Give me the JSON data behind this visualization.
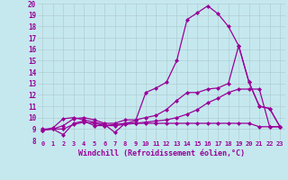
{
  "xlabel": "Windchill (Refroidissement éolien,°C)",
  "xlim": [
    -0.5,
    23.5
  ],
  "ylim": [
    8,
    20
  ],
  "xticks": [
    0,
    1,
    2,
    3,
    4,
    5,
    6,
    7,
    8,
    9,
    10,
    11,
    12,
    13,
    14,
    15,
    16,
    17,
    18,
    19,
    20,
    21,
    22,
    23
  ],
  "yticks": [
    8,
    9,
    10,
    11,
    12,
    13,
    14,
    15,
    16,
    17,
    18,
    19,
    20
  ],
  "bg_color": "#c5e8ee",
  "grid_color": "#b0cdd4",
  "line_color": "#990099",
  "line1_x": [
    0,
    1,
    2,
    3,
    4,
    5,
    6,
    7,
    8,
    9,
    10,
    11,
    12,
    13,
    14,
    15,
    16,
    17,
    18,
    19,
    20,
    21,
    22,
    23
  ],
  "line1_y": [
    8.9,
    9.1,
    9.9,
    10.0,
    9.8,
    9.6,
    9.4,
    8.7,
    9.5,
    9.7,
    12.2,
    12.6,
    13.1,
    15.0,
    18.6,
    19.2,
    19.8,
    19.1,
    18.0,
    16.3,
    13.1,
    11.0,
    10.8,
    9.2
  ],
  "line2_x": [
    0,
    1,
    2,
    3,
    4,
    5,
    6,
    7,
    8,
    9,
    10,
    11,
    12,
    13,
    14,
    15,
    16,
    17,
    18,
    19,
    20,
    21,
    22,
    23
  ],
  "line2_y": [
    9.0,
    9.0,
    9.0,
    9.4,
    9.6,
    9.5,
    9.3,
    9.4,
    9.5,
    9.5,
    9.6,
    9.7,
    9.8,
    10.0,
    10.3,
    10.7,
    11.3,
    11.7,
    12.2,
    12.5,
    12.5,
    12.5,
    9.2,
    9.2
  ],
  "line3_x": [
    0,
    1,
    2,
    3,
    4,
    5,
    6,
    7,
    8,
    9,
    10,
    11,
    12,
    13,
    14,
    15,
    16,
    17,
    18,
    19,
    20,
    21,
    22,
    23
  ],
  "line3_y": [
    8.9,
    9.0,
    9.3,
    9.9,
    10.0,
    9.8,
    9.5,
    9.5,
    9.8,
    9.8,
    10.0,
    10.2,
    10.7,
    11.5,
    12.2,
    12.2,
    12.5,
    12.6,
    13.0,
    16.3,
    13.1,
    11.0,
    10.8,
    9.2
  ],
  "line4_x": [
    0,
    1,
    2,
    3,
    4,
    5,
    6,
    7,
    8,
    9,
    10,
    11,
    12,
    13,
    14,
    15,
    16,
    17,
    18,
    19,
    20,
    21,
    22,
    23
  ],
  "line4_y": [
    8.9,
    9.0,
    8.5,
    9.5,
    9.7,
    9.3,
    9.3,
    9.3,
    9.4,
    9.5,
    9.5,
    9.5,
    9.5,
    9.5,
    9.5,
    9.5,
    9.5,
    9.5,
    9.5,
    9.5,
    9.5,
    9.2,
    9.2,
    9.2
  ],
  "marker": "D",
  "markersize": 2,
  "linewidth": 0.9
}
